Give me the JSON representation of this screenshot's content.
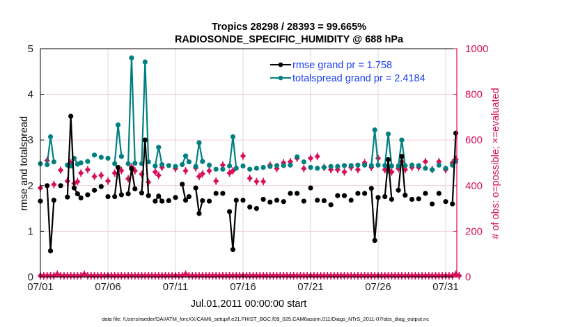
{
  "chart_data": {
    "type": "line",
    "title": "Tropics 28298 / 28393 = 99.665%",
    "subtitle": "RADIOSONDE_SPECIFIC_HUMIDITY @ 688 hPa",
    "xlabel": "Jul.01,2011 00:00:00 start",
    "ylabel": "rmse and totalspread",
    "y2label": "# of obs: o=possible; ×=evaluated",
    "footnote": "data file: /Users/raeder/DAI/ATM_forcXX/CAM6_setup/f.e21.FHIST_BGC.f09_025.CAM6assim.011/Diags_NTrS_2011-07/obs_diag_output.nc",
    "xlim": [
      0,
      31.3
    ],
    "ylim": [
      0,
      5
    ],
    "y2lim": [
      0,
      1000
    ],
    "grid": true,
    "legend_position": "top-right",
    "x_ticks": [
      {
        "day": 0,
        "label": "07/01"
      },
      {
        "day": 5,
        "label": "07/06"
      },
      {
        "day": 10,
        "label": "07/11"
      },
      {
        "day": 15,
        "label": "07/16"
      },
      {
        "day": 20,
        "label": "07/21"
      },
      {
        "day": 25,
        "label": "07/26"
      },
      {
        "day": 30,
        "label": "07/31"
      }
    ],
    "y_ticks": [
      "0",
      "1",
      "2",
      "3",
      "4",
      "5"
    ],
    "y2_ticks": [
      "0",
      "200",
      "400",
      "600",
      "800",
      "1000"
    ],
    "colors": {
      "rmse": "#000000",
      "spread": "#008080",
      "obs": "#d6105a",
      "legend_text": "#1a40f0",
      "grid_red": "#f3c6d6",
      "grid_gray": "#d9d9d9"
    },
    "series": [
      {
        "name": "rmse grand pr = 1.758",
        "key": "rmse"
      },
      {
        "name": "totalspread grand pr = 2.4184",
        "key": "spread"
      }
    ],
    "x_days": [
      0,
      0.5,
      0.75,
      1,
      1.5,
      2,
      2.25,
      2.5,
      2.75,
      3,
      3.5,
      4,
      4.5,
      5,
      5.5,
      5.75,
      6,
      6.5,
      6.75,
      7,
      7.5,
      7.75,
      8,
      8.5,
      8.75,
      9,
      9.5,
      10,
      10.5,
      10.75,
      11,
      11.5,
      11.75,
      12,
      12.5,
      13,
      13.5,
      14,
      14.25,
      14.5,
      15,
      15.5,
      16,
      16.5,
      17,
      17.5,
      18,
      18.5,
      19,
      19.5,
      20,
      20.5,
      21,
      21.5,
      22,
      22.5,
      23,
      23.5,
      24,
      24.5,
      24.75,
      25,
      25.5,
      25.75,
      26,
      26.5,
      26.75,
      27,
      27.5,
      28,
      28.5,
      29,
      29.5,
      30,
      30.5,
      30.75
    ],
    "rmse": [
      1.66,
      2.0,
      0.57,
      1.68,
      2.0,
      1.75,
      3.52,
      1.95,
      1.82,
      1.73,
      1.8,
      1.9,
      1.98,
      1.76,
      1.76,
      2.4,
      1.8,
      1.82,
      2.37,
      1.93,
      1.84,
      3.0,
      1.78,
      1.66,
      1.77,
      1.66,
      1.67,
      1.74,
      2.03,
      1.68,
      1.76,
      1.95,
      1.39,
      1.67,
      1.66,
      1.83,
      1.83,
      1.43,
      0.6,
      1.68,
      1.68,
      1.53,
      1.5,
      1.7,
      1.64,
      1.68,
      1.65,
      1.83,
      1.83,
      1.66,
      1.95,
      1.68,
      1.67,
      1.58,
      1.78,
      1.78,
      1.68,
      1.83,
      1.83,
      1.94,
      0.8,
      1.74,
      1.76,
      2.57,
      1.7,
      1.9,
      2.64,
      1.79,
      1.7,
      1.71,
      1.83,
      1.6,
      1.83,
      1.65,
      1.6,
      3.15
    ],
    "spread": [
      2.48,
      2.46,
      3.07,
      2.52,
      null,
      2.45,
      2.43,
      2.6,
      2.47,
      2.5,
      2.53,
      2.67,
      2.62,
      2.6,
      2.48,
      3.33,
      2.64,
      2.48,
      4.8,
      2.49,
      2.48,
      4.71,
      2.52,
      2.43,
      2.84,
      2.46,
      2.44,
      2.42,
      2.46,
      2.65,
      2.52,
      2.42,
      2.94,
      2.53,
      2.45,
      2.36,
      2.36,
      2.43,
      3.07,
      2.38,
      2.43,
      2.36,
      2.38,
      2.4,
      2.42,
      2.44,
      2.44,
      2.45,
      2.63,
      2.52,
      2.4,
      2.38,
      2.4,
      2.42,
      2.42,
      2.44,
      2.44,
      2.45,
      2.45,
      2.44,
      3.22,
      2.45,
      2.44,
      3.13,
      2.43,
      2.43,
      3.0,
      2.44,
      2.45,
      2.44,
      2.38,
      2.35,
      2.45,
      2.38,
      2.45,
      2.53
    ],
    "obs_possible": [
      390,
      510,
      null,
      405,
      468,
      420,
      500,
      410,
      418,
      455,
      470,
      440,
      445,
      420,
      455,
      null,
      466,
      430,
      482,
      465,
      450,
      null,
      415,
      460,
      445,
      480,
      null,
      475,
      null,
      465,
      null,
      478,
      440,
      452,
      465,
      420,
      490,
      455,
      465,
      null,
      530,
      432,
      418,
      418,
      490,
      475,
      500,
      505,
      520,
      475,
      520,
      528,
      480,
      470,
      470,
      460,
      480,
      470,
      500,
      480,
      null,
      520,
      470,
      470,
      460,
      475,
      505,
      470,
      480,
      480,
      505,
      470,
      505,
      470,
      500,
      515
    ],
    "obs_used": [
      390,
      510,
      null,
      405,
      468,
      420,
      500,
      410,
      418,
      455,
      470,
      440,
      445,
      420,
      455,
      null,
      466,
      430,
      482,
      465,
      450,
      null,
      415,
      460,
      445,
      480,
      null,
      475,
      null,
      465,
      null,
      478,
      440,
      452,
      465,
      420,
      490,
      455,
      465,
      null,
      530,
      432,
      418,
      418,
      490,
      475,
      500,
      505,
      520,
      475,
      520,
      528,
      480,
      470,
      470,
      460,
      480,
      470,
      500,
      480,
      null,
      520,
      470,
      470,
      460,
      475,
      505,
      470,
      480,
      480,
      505,
      470,
      505,
      470,
      500,
      515
    ],
    "bottom_obs_days_spacing": 0.25,
    "bottom_obs_value": 5,
    "bottom_obs_bump_days": [
      1.25,
      3.25,
      10.75,
      30.75
    ],
    "bottom_obs_bump_value": 12
  }
}
